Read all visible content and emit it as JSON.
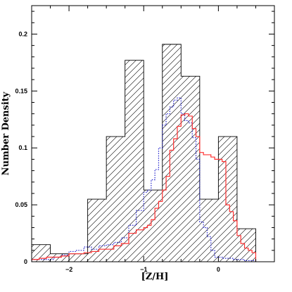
{
  "chart_data": {
    "type": "histogram",
    "title": "",
    "xlabel": "[Z/H]",
    "ylabel": "Number Density",
    "xlim": [
      -2.5,
      0.75
    ],
    "ylim": [
      0,
      0.225
    ],
    "xticks": [
      -2,
      -1,
      0
    ],
    "xtick_labels": [
      "−2",
      "−1",
      "0"
    ],
    "yticks": [
      0,
      0.05,
      0.1,
      0.15,
      0.2
    ],
    "ytick_labels": [
      "0",
      "0.05",
      "0.1",
      "0.15",
      "0.2"
    ],
    "grid": false,
    "series": [
      {
        "style": "hatched-black",
        "color": "#000000",
        "edges": [
          -2.5,
          -2.25,
          -2.0,
          -1.75,
          -1.5,
          -1.25,
          -1.0,
          -0.75,
          -0.5,
          -0.25,
          0.0,
          0.25,
          0.5
        ],
        "values": [
          0.015,
          0.007,
          0.007,
          0.055,
          0.11,
          0.177,
          0.063,
          0.191,
          0.163,
          0.055,
          0.11,
          0.029
        ]
      },
      {
        "style": "dotted-blue",
        "color": "#2222cc",
        "edges": [
          -2.5,
          -2.4,
          -2.3,
          -2.2,
          -2.1,
          -2.0,
          -1.9,
          -1.8,
          -1.7,
          -1.6,
          -1.5,
          -1.4,
          -1.3,
          -1.2,
          -1.1,
          -1.0,
          -0.95,
          -0.9,
          -0.85,
          -0.8,
          -0.75,
          -0.7,
          -0.65,
          -0.6,
          -0.55,
          -0.5,
          -0.45,
          -0.4,
          -0.35,
          -0.3,
          -0.25,
          -0.2,
          -0.15,
          -0.1,
          -0.05,
          0.0,
          0.05,
          0.1,
          0.15,
          0.2,
          0.25,
          0.3,
          0.35,
          0.4,
          0.45,
          0.5
        ],
        "values": [
          0.002,
          0.002,
          0.002,
          0.004,
          0.006,
          0.009,
          0.01,
          0.013,
          0.011,
          0.014,
          0.015,
          0.017,
          0.021,
          0.032,
          0.045,
          0.061,
          0.063,
          0.072,
          0.081,
          0.1,
          0.12,
          0.13,
          0.136,
          0.142,
          0.144,
          0.13,
          0.124,
          0.122,
          0.109,
          0.09,
          0.035,
          0.03,
          0.022,
          0.01,
          0.004,
          0.004,
          0.003,
          0.003,
          0.003,
          0.002,
          0.002,
          0.002,
          0.001,
          0.001,
          0.001
        ]
      },
      {
        "style": "solid-red",
        "color": "#ff3030",
        "edges": [
          -2.5,
          -2.4,
          -2.3,
          -2.2,
          -2.1,
          -2.0,
          -1.9,
          -1.8,
          -1.7,
          -1.6,
          -1.5,
          -1.4,
          -1.3,
          -1.2,
          -1.1,
          -1.0,
          -0.95,
          -0.9,
          -0.85,
          -0.8,
          -0.75,
          -0.7,
          -0.65,
          -0.6,
          -0.55,
          -0.5,
          -0.45,
          -0.4,
          -0.35,
          -0.3,
          -0.25,
          -0.2,
          -0.15,
          -0.1,
          -0.05,
          0.0,
          0.05,
          0.1,
          0.15,
          0.2,
          0.25,
          0.3,
          0.35,
          0.4,
          0.45,
          0.5
        ],
        "values": [
          0.002,
          0.003,
          0.004,
          0.004,
          0.005,
          0.007,
          0.007,
          0.008,
          0.009,
          0.011,
          0.011,
          0.014,
          0.016,
          0.025,
          0.028,
          0.03,
          0.032,
          0.037,
          0.047,
          0.053,
          0.063,
          0.075,
          0.098,
          0.108,
          0.119,
          0.129,
          0.13,
          0.128,
          0.117,
          0.11,
          0.096,
          0.094,
          0.094,
          0.092,
          0.09,
          0.09,
          0.088,
          0.05,
          0.044,
          0.036,
          0.023,
          0.016,
          0.012,
          0.01,
          0.008
        ]
      }
    ]
  }
}
